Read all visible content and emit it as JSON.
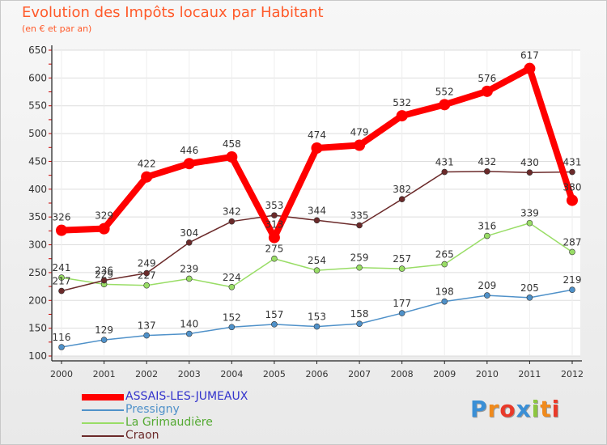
{
  "header": {
    "title": "Evolution des Impôts locaux par Habitant",
    "subtitle": "(en € et par an)"
  },
  "colors": {
    "title": "#ff5a2a",
    "axis": "#222222",
    "grid": "#dddddd",
    "tick_mark": "#cc0000"
  },
  "logo": {
    "letters": [
      "P",
      "r",
      "o",
      "x",
      "i",
      "t",
      "i"
    ],
    "colors": [
      "#3a8fd6",
      "#f08a1c",
      "#e93a2a",
      "#3a8fd6",
      "#8cc63f",
      "#f08a1c",
      "#e93a2a"
    ]
  },
  "chart_data": {
    "type": "line",
    "title": "Evolution des Impôts locaux par Habitant",
    "subtitle": "(en € et par an)",
    "xlabel": "",
    "ylabel": "",
    "x": [
      "2000",
      "2001",
      "2002",
      "2003",
      "2004",
      "2005",
      "2006",
      "2007",
      "2008",
      "2009",
      "2010",
      "2011",
      "2012"
    ],
    "ylim": [
      100,
      650
    ],
    "yticks": [
      100,
      150,
      200,
      250,
      300,
      350,
      400,
      450,
      500,
      550,
      600,
      650
    ],
    "grid": true,
    "legend_position": "bottom-left",
    "series": [
      {
        "name": "ASSAIS-LES-JUMEAUX",
        "color": "#ff0000",
        "legend_text_color": "#3333cc",
        "emphasis": true,
        "values": [
          326,
          329,
          422,
          446,
          458,
          313,
          474,
          479,
          532,
          552,
          576,
          617,
          380
        ]
      },
      {
        "name": "Pressigny",
        "color": "#4f91c9",
        "legend_text_color": "#4f91c9",
        "emphasis": false,
        "values": [
          116,
          129,
          137,
          140,
          152,
          157,
          153,
          158,
          177,
          198,
          209,
          205,
          219
        ]
      },
      {
        "name": "La Grimaudière",
        "color": "#99dd66",
        "legend_text_color": "#55aa33",
        "emphasis": false,
        "values": [
          241,
          229,
          227,
          239,
          224,
          275,
          254,
          259,
          257,
          265,
          316,
          339,
          287
        ]
      },
      {
        "name": "Craon",
        "color": "#6b2a2a",
        "legend_text_color": "#6b2a2a",
        "emphasis": false,
        "values": [
          217,
          236,
          249,
          304,
          342,
          353,
          344,
          335,
          382,
          431,
          432,
          430,
          431
        ]
      }
    ]
  }
}
